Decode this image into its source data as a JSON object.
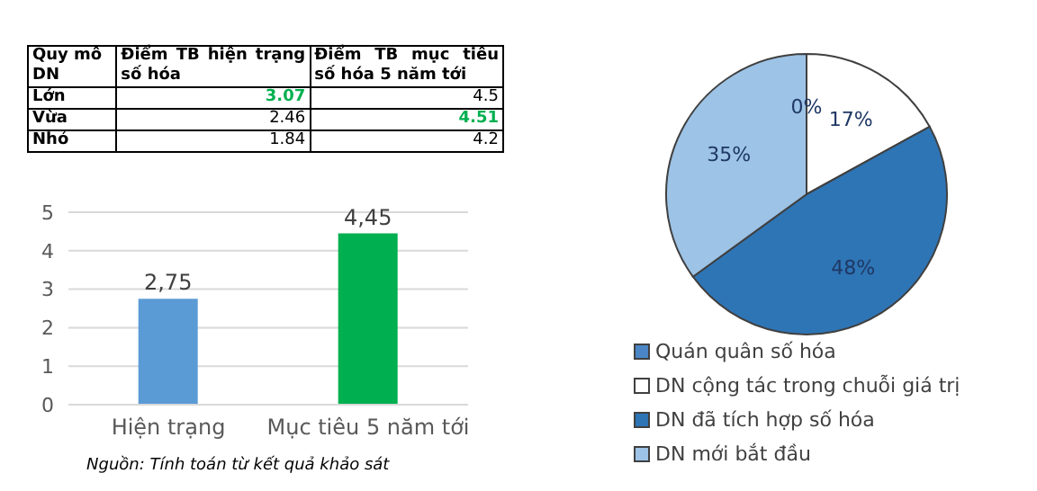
{
  "chart_data": [
    {
      "type": "heatmap",
      "ylabel": "Quy mô DN",
      "categories": [
        "Điểm TB hiện trạng số hóa",
        "Điểm TB mục tiêu số hóa 5 năm tới"
      ],
      "y_categories": [
        "Lớn",
        "Vừa",
        "Nhỏ"
      ],
      "cells": [
        [
          3.07,
          4.5
        ],
        [
          2.46,
          4.51
        ],
        [
          1.84,
          4.2
        ]
      ],
      "cell_labels": [
        [
          "3.07",
          "4.5"
        ],
        [
          "2.46",
          "4.51"
        ],
        [
          "1.84",
          "4.2"
        ]
      ]
    },
    {
      "type": "bar",
      "categories": [
        "Hiện trạng",
        "Mục tiêu 5 năm tới"
      ],
      "values": [
        2.75,
        4.45
      ],
      "colors": [
        "#5b9bd5",
        "#00b050"
      ],
      "value_labels": [
        "2,75",
        "4,45"
      ],
      "ylim": [
        0,
        5
      ],
      "yticks": [
        0,
        1,
        2,
        3,
        4,
        5
      ],
      "grid": "y",
      "annotations": [
        "Nguồn: Tính toán từ kết quả khảo sát"
      ]
    },
    {
      "type": "pie",
      "categories": [
        "Quán quân số hóa",
        "DN cộng tác trong chuỗi giá trị",
        "DN đã tích hợp số hóa",
        "DN mới bắt đầu"
      ],
      "values": [
        0,
        17,
        48,
        35
      ],
      "colors": [
        "#4a86c5",
        "#ffffff",
        "#2e75b6",
        "#9dc3e6"
      ],
      "value_labels": [
        "0%",
        "17%",
        "48%",
        "35%"
      ],
      "legend": "bottom"
    }
  ]
}
